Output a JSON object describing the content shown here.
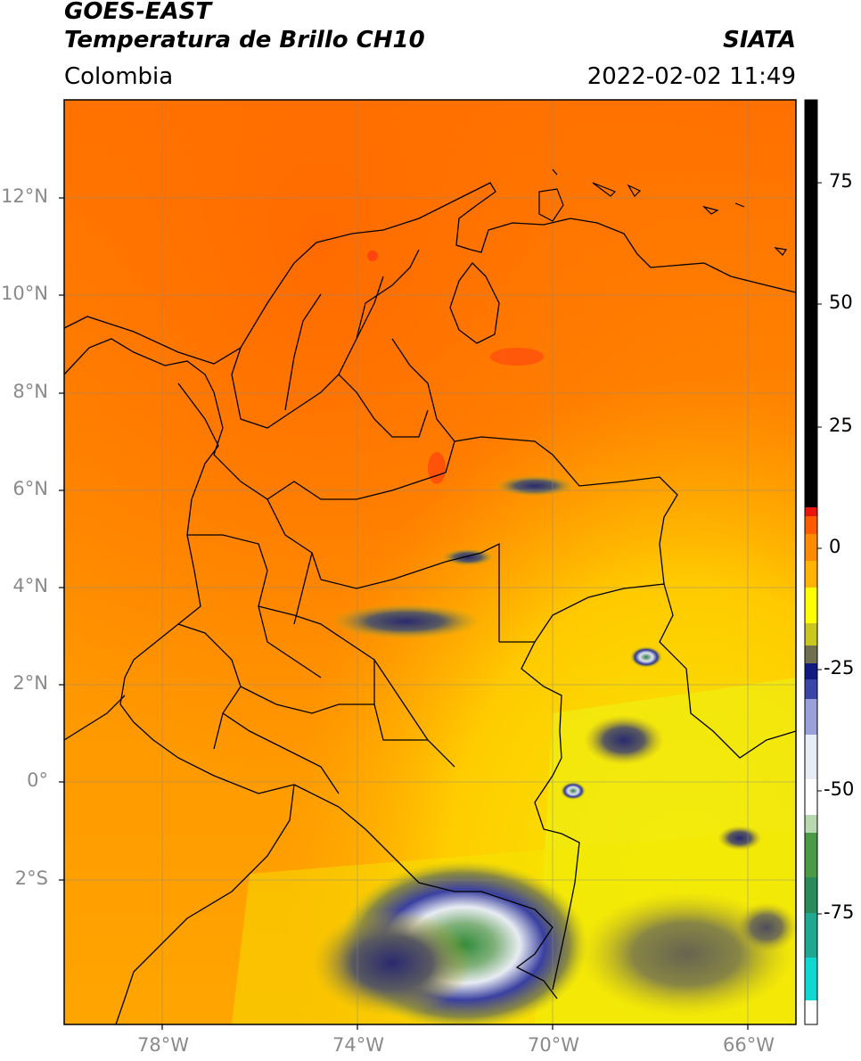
{
  "header": {
    "satellite": "GOES-EAST",
    "product": "Temperatura de Brillo CH10",
    "region": "Colombia",
    "agency": "SIATA",
    "datetime": "2022-02-02 11:49"
  },
  "map": {
    "lat_ticks": [
      "12°N",
      "10°N",
      "8°N",
      "6°N",
      "4°N",
      "2°N",
      "0°",
      "2°S"
    ],
    "lon_ticks": [
      "78°W",
      "74°W",
      "70°W",
      "66°W"
    ],
    "lon_range": [
      -80,
      -65
    ],
    "lat_range": [
      -5,
      14
    ],
    "grid": true
  },
  "colorbar": {
    "ticks": [
      "75",
      "50",
      "25",
      "0",
      "-25",
      "-50",
      "-75"
    ],
    "range": [
      -95,
      90
    ],
    "colors": {
      "black": "#000000",
      "red": "#e8150c",
      "orange": "#ff8a00",
      "yellow": "#ffff00",
      "olive": "#9a9a2a",
      "navy": "#101a80",
      "white": "#ffffff",
      "green": "#2f8a3a",
      "cyan": "#10d8d0"
    }
  }
}
